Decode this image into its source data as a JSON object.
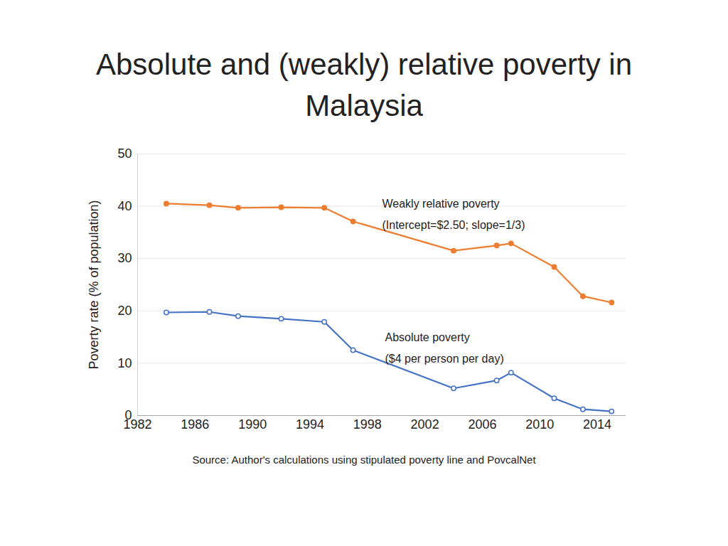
{
  "chart_data": {
    "type": "line",
    "title": "Absolute and (weakly) relative poverty in Malaysia",
    "y_label": "Poverty rate (% of population)",
    "caption": "Source: Author's calculations using stipulated poverty line and PovcalNet",
    "x": [
      1984,
      1987,
      1989,
      1992,
      1995,
      1997,
      2004,
      2007,
      2008,
      2011,
      2013,
      2015
    ],
    "series": [
      {
        "name": "Weakly relative poverty",
        "annotation": [
          "Weakly relative poverty",
          "(Intercept=$2.50; slope=1/3)"
        ],
        "color": "#ED7D31",
        "marker": "circle",
        "values": [
          40.5,
          40.2,
          39.7,
          39.8,
          39.7,
          37.1,
          31.5,
          32.5,
          32.9,
          28.4,
          22.8,
          21.6
        ]
      },
      {
        "name": "Absolute poverty",
        "annotation": [
          "Absolute poverty",
          "($4 per person per day)"
        ],
        "color": "#4472C4",
        "marker": "circle-open",
        "values": [
          19.7,
          19.8,
          19.0,
          18.5,
          17.9,
          12.5,
          5.2,
          6.7,
          8.2,
          3.3,
          1.2,
          0.8
        ]
      }
    ],
    "xlim": [
      1982,
      2016
    ],
    "xticks": [
      1982,
      1986,
      1990,
      1994,
      1998,
      2002,
      2006,
      2010,
      2014
    ],
    "ylim": [
      0,
      50
    ],
    "yticks": [
      0,
      10,
      20,
      30,
      40,
      50
    ],
    "grid": true
  }
}
